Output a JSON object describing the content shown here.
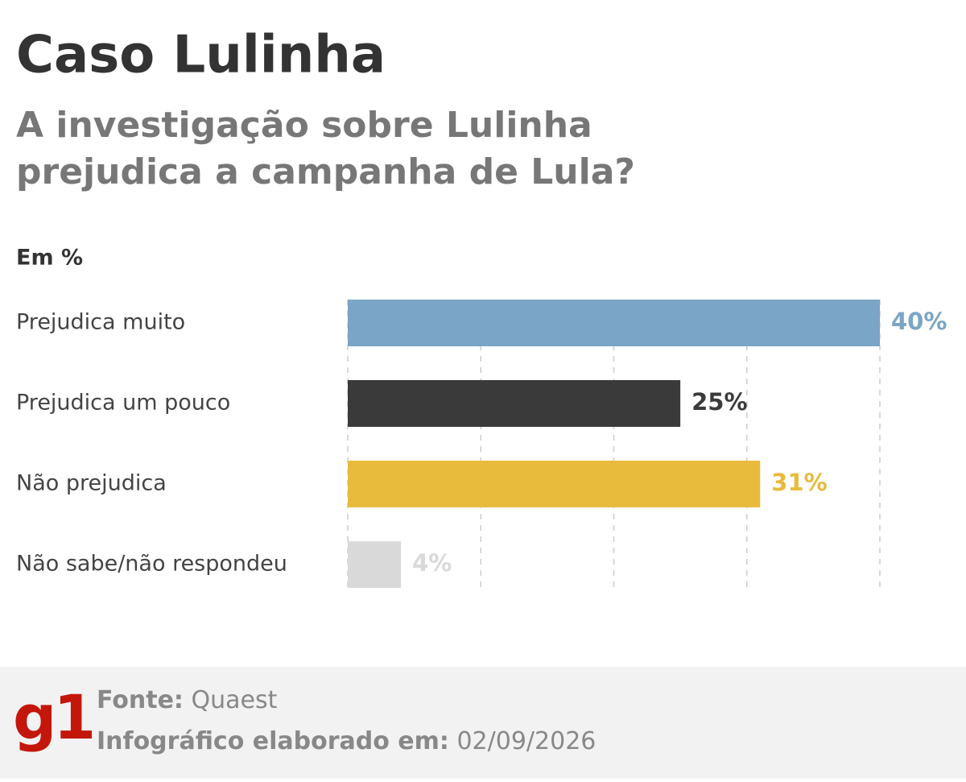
{
  "chart_data": {
    "type": "hbar",
    "title": "Caso Lulinha",
    "subtitle_lines": [
      "A investigação sobre Lulinha",
      "prejudica a campanha de Lula?"
    ],
    "unit_label": "Em %",
    "categories": [
      "Prejudica muito",
      "Prejudica um pouco",
      "Não prejudica",
      "Não sabe/não respondeu"
    ],
    "values": [
      40,
      25,
      31,
      4
    ],
    "value_labels": [
      "40%",
      "25%",
      "31%",
      "4%"
    ],
    "colors": [
      "#7aa5c6",
      "#3a3a3a",
      "#e8bb3c",
      "#d9d9d9"
    ],
    "xlim": [
      0,
      40
    ],
    "xticks": [
      0,
      10,
      20,
      30,
      40
    ],
    "grid": true
  },
  "footer": {
    "logo": "g1",
    "source_label": "Fonte:",
    "source": "Quaest",
    "date_label": "Infográfico elaborado em:",
    "date": "02/09/2026"
  }
}
